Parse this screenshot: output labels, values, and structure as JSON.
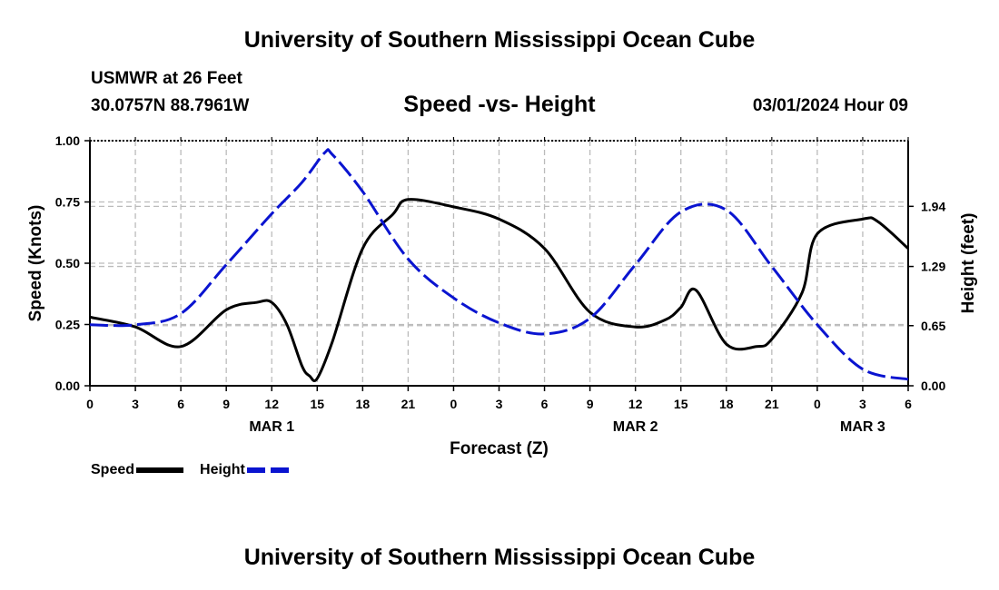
{
  "header": {
    "title": "University of Southern Mississippi Ocean Cube",
    "station": "USMWR at 26 Feet",
    "coords": "30.0757N  88.7961W",
    "subtitle": "Speed -vs- Height",
    "timestamp": "03/01/2024 Hour 09"
  },
  "legend": {
    "speed_label": "Speed",
    "height_label": "Height"
  },
  "footer": {
    "title": "University of Southern Mississippi Ocean Cube"
  },
  "colors": {
    "speed": "#000000",
    "height": "#0a14d0",
    "grid": "#bbbbbb"
  },
  "chart_data": {
    "type": "line",
    "title": "Speed -vs- Height",
    "xlabel": "Forecast (Z)",
    "ylabel": "Speed (Knots)",
    "ylabel_right": "Height (feet)",
    "xlim": [
      0,
      54
    ],
    "ylim": [
      0,
      1.0
    ],
    "ylim_right": [
      0.0,
      2.65
    ],
    "x_ticks": [
      0,
      3,
      6,
      9,
      12,
      15,
      18,
      21,
      24,
      27,
      30,
      33,
      36,
      39,
      42,
      45,
      48,
      51,
      54
    ],
    "x_tick_labels": [
      "0",
      "3",
      "6",
      "9",
      "12",
      "15",
      "18",
      "21",
      "0",
      "3",
      "6",
      "9",
      "12",
      "15",
      "18",
      "21",
      "0",
      "3",
      "6"
    ],
    "date_labels": [
      {
        "x": 12,
        "label": "MAR 1"
      },
      {
        "x": 36,
        "label": "MAR 2"
      },
      {
        "x": 51,
        "label": "MAR 3"
      }
    ],
    "y_ticks": [
      0.0,
      0.25,
      0.5,
      0.75,
      1.0
    ],
    "y_tick_labels": [
      "0.00",
      "0.25",
      "0.50",
      "0.75",
      "1.00"
    ],
    "y_right_ticks": [
      0.0,
      0.65,
      1.29,
      1.94
    ],
    "y_right_tick_labels": [
      "0.00",
      "0.65",
      "1.29",
      "1.94"
    ],
    "grid": true,
    "legend_position": "bottom-left",
    "series": [
      {
        "name": "Speed",
        "axis": "left",
        "style": "solid",
        "x": [
          0,
          3,
          6,
          9,
          11,
          12,
          13,
          14,
          14.5,
          15,
          16,
          18,
          20,
          21,
          24,
          27,
          30,
          33,
          36,
          38,
          39,
          40,
          42,
          44,
          45,
          47,
          48,
          51,
          52,
          54
        ],
        "y": [
          0.28,
          0.24,
          0.16,
          0.31,
          0.34,
          0.34,
          0.25,
          0.08,
          0.04,
          0.03,
          0.18,
          0.56,
          0.7,
          0.76,
          0.73,
          0.68,
          0.56,
          0.3,
          0.24,
          0.27,
          0.32,
          0.39,
          0.17,
          0.16,
          0.19,
          0.38,
          0.62,
          0.68,
          0.67,
          0.56
        ]
      },
      {
        "name": "Height",
        "axis": "right",
        "style": "dashed",
        "x": [
          0,
          3,
          6,
          9,
          12,
          14,
          15.5,
          16,
          18,
          21,
          24,
          27,
          30,
          33,
          36,
          39,
          42,
          45,
          48,
          51,
          54
        ],
        "y": [
          0.66,
          0.66,
          0.78,
          1.31,
          1.86,
          2.2,
          2.52,
          2.5,
          2.1,
          1.37,
          0.95,
          0.68,
          0.56,
          0.73,
          1.31,
          1.88,
          1.9,
          1.29,
          0.66,
          0.18,
          0.07
        ]
      }
    ]
  }
}
